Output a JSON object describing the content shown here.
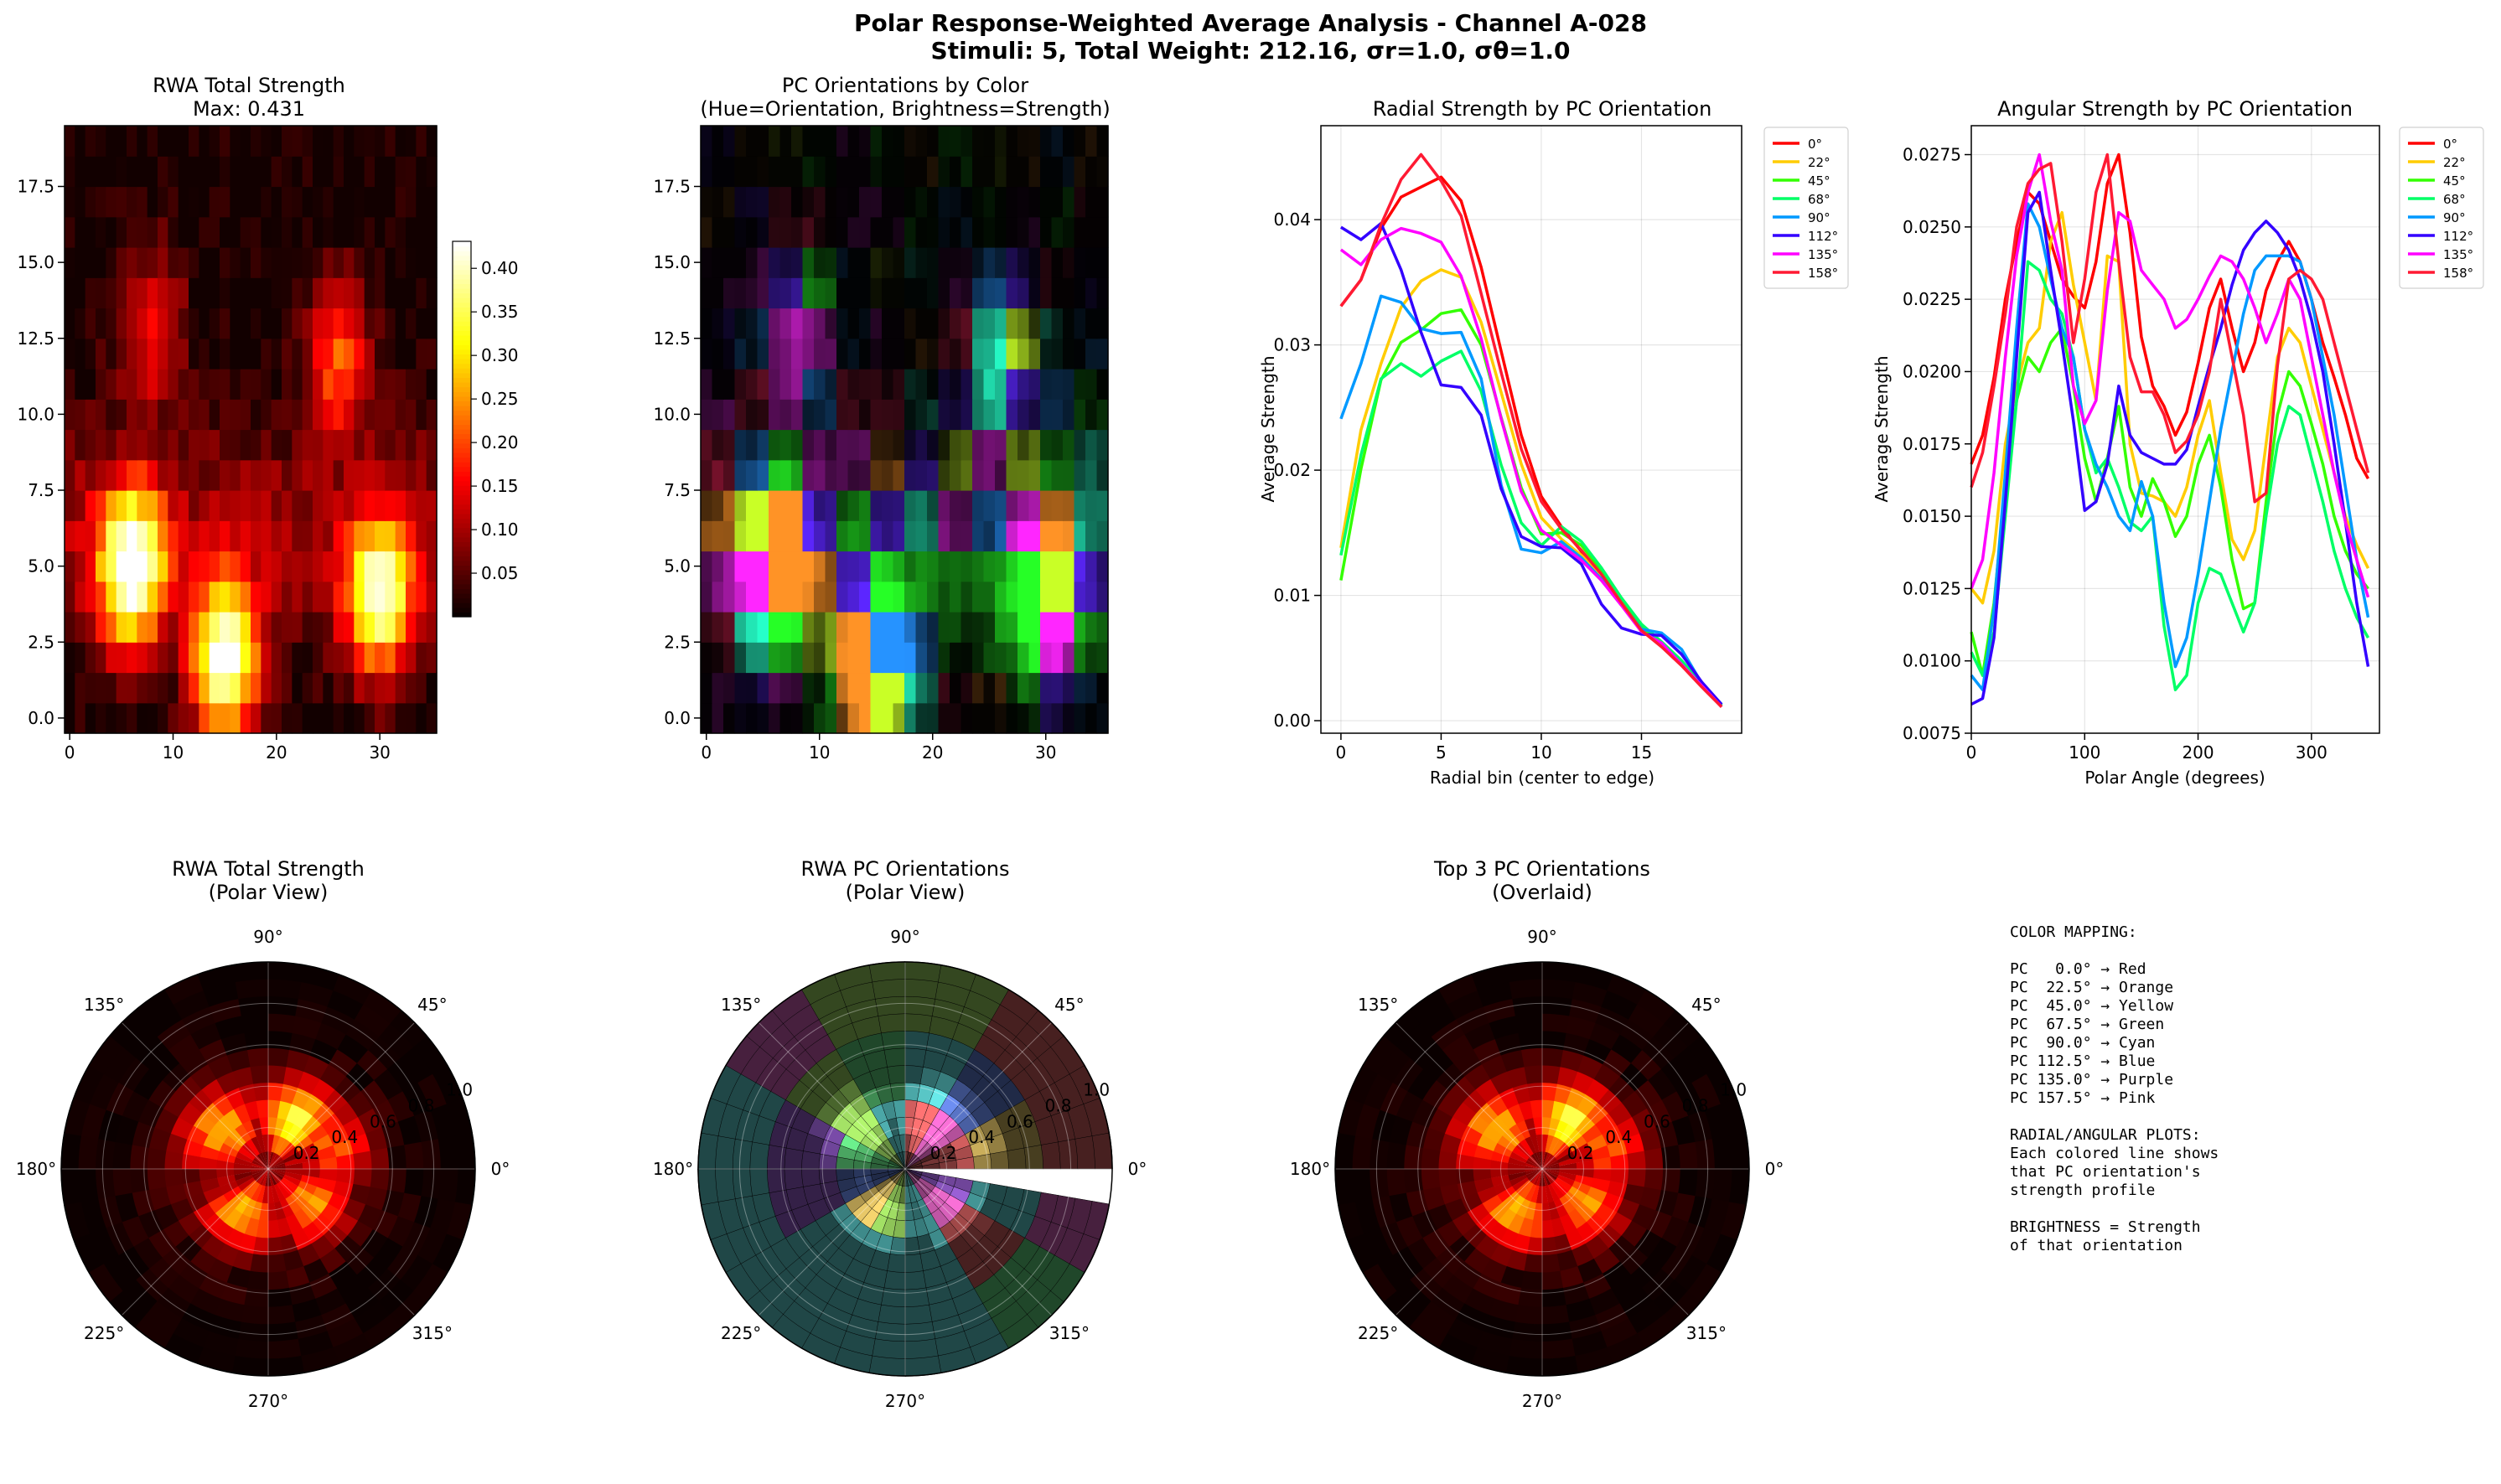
{
  "figure": {
    "title_line1": "Polar Response-Weighted Average Analysis - Channel A-028",
    "title_line2": "Stimuli: 5, Total Weight: 212.16, σr=1.0, σθ=1.0"
  },
  "chart_data": [
    {
      "type": "heatmap",
      "title": "RWA Total Strength",
      "subtitle": "Max: 0.431",
      "colormap": "hot",
      "xlim": [
        -0.5,
        35.5
      ],
      "ylim": [
        -0.5,
        19.5
      ],
      "xticks": [
        "0",
        "10",
        "20",
        "30"
      ],
      "yticks": [
        "0.0",
        "2.5",
        "5.0",
        "7.5",
        "10.0",
        "12.5",
        "15.0",
        "17.5"
      ],
      "colorbar_ticks": [
        "0.05",
        "0.10",
        "0.15",
        "0.20",
        "0.25",
        "0.30",
        "0.35",
        "0.40"
      ],
      "colorbar_range": [
        0.0,
        0.431
      ],
      "grid_shape": [
        20,
        36
      ],
      "hotspots": [
        {
          "x": 6,
          "y": 5,
          "value": 0.42
        },
        {
          "x": 15,
          "y": 2,
          "value": 0.43
        },
        {
          "x": 30,
          "y": 4,
          "value": 0.36
        },
        {
          "x": 26,
          "y": 12,
          "value": 0.2
        },
        {
          "x": 8,
          "y": 13,
          "value": 0.16
        }
      ]
    },
    {
      "type": "heatmap",
      "title": "PC Orientations by Color",
      "subtitle": "(Hue=Orientation, Brightness=Strength)",
      "xlim": [
        -0.5,
        35.5
      ],
      "ylim": [
        -0.5,
        19.5
      ],
      "xticks": [
        "0",
        "10",
        "20",
        "30"
      ],
      "yticks": [
        "0.0",
        "2.5",
        "5.0",
        "7.5",
        "10.0",
        "12.5",
        "15.0",
        "17.5"
      ]
    },
    {
      "type": "line",
      "title": "Radial Strength by PC Orientation",
      "xlabel": "Radial bin (center to edge)",
      "ylabel": "Average Strength",
      "xlim": [
        -1,
        20
      ],
      "ylim": [
        -0.001,
        0.0475
      ],
      "xticks": [
        0,
        5,
        10,
        15
      ],
      "yticks": [
        0.0,
        0.01,
        0.02,
        0.03,
        0.04
      ],
      "ytick_labels": [
        "0.00",
        "0.01",
        "0.02",
        "0.03",
        "0.04"
      ],
      "x": [
        0,
        1,
        2,
        3,
        4,
        5,
        6,
        7,
        8,
        9,
        10,
        11,
        12,
        13,
        14,
        15,
        16,
        17,
        18,
        19
      ],
      "legend_position": "outside-right",
      "series": [
        {
          "name": "0°",
          "color": "#ff0000",
          "values": [
            0.0331,
            0.0352,
            0.0393,
            0.0418,
            0.0426,
            0.0434,
            0.0415,
            0.0362,
            0.0295,
            0.0228,
            0.0179,
            0.0155,
            0.0135,
            0.0118,
            0.0095,
            0.0073,
            0.006,
            0.0045,
            0.0028,
            0.0011
          ]
        },
        {
          "name": "22°",
          "color": "#ffcc00",
          "values": [
            0.0138,
            0.0232,
            0.0285,
            0.033,
            0.0351,
            0.036,
            0.0354,
            0.0318,
            0.0262,
            0.0205,
            0.0162,
            0.0145,
            0.0132,
            0.0116,
            0.0093,
            0.0073,
            0.006,
            0.0045,
            0.0028,
            0.0012
          ]
        },
        {
          "name": "45°",
          "color": "#33ff00",
          "values": [
            0.0112,
            0.0201,
            0.0272,
            0.0302,
            0.0312,
            0.0325,
            0.0328,
            0.03,
            0.0242,
            0.0186,
            0.0149,
            0.015,
            0.014,
            0.012,
            0.0096,
            0.0075,
            0.0062,
            0.0047,
            0.0029,
            0.0012
          ]
        },
        {
          "name": "68°",
          "color": "#00ff66",
          "values": [
            0.0132,
            0.0212,
            0.0273,
            0.0285,
            0.0275,
            0.0287,
            0.0295,
            0.0263,
            0.0204,
            0.0158,
            0.014,
            0.0155,
            0.0143,
            0.0122,
            0.0098,
            0.0077,
            0.0063,
            0.0048,
            0.003,
            0.0012
          ]
        },
        {
          "name": "90°",
          "color": "#0099ff",
          "values": [
            0.0241,
            0.0285,
            0.0339,
            0.0334,
            0.0313,
            0.0309,
            0.031,
            0.0273,
            0.0188,
            0.0137,
            0.0134,
            0.0143,
            0.013,
            0.0113,
            0.0093,
            0.0073,
            0.007,
            0.0057,
            0.003,
            0.0013
          ]
        },
        {
          "name": "112°",
          "color": "#3300ff",
          "values": [
            0.0394,
            0.0384,
            0.0397,
            0.036,
            0.031,
            0.0268,
            0.0266,
            0.0244,
            0.0185,
            0.0147,
            0.0139,
            0.0138,
            0.0125,
            0.0093,
            0.0074,
            0.0069,
            0.0068,
            0.0053,
            0.0031,
            0.0013
          ]
        },
        {
          "name": "135°",
          "color": "#ff00ff",
          "values": [
            0.0376,
            0.0364,
            0.0384,
            0.0393,
            0.0389,
            0.0382,
            0.0355,
            0.0305,
            0.0241,
            0.0183,
            0.0152,
            0.014,
            0.0128,
            0.0112,
            0.0092,
            0.0071,
            0.0062,
            0.0045,
            0.0028,
            0.0011
          ]
        },
        {
          "name": "158°",
          "color": "#ff1a33",
          "values": [
            0.0331,
            0.0352,
            0.0396,
            0.0432,
            0.0452,
            0.0431,
            0.0403,
            0.0341,
            0.0278,
            0.0217,
            0.0175,
            0.0153,
            0.0136,
            0.0117,
            0.0094,
            0.0072,
            0.0059,
            0.0044,
            0.0027,
            0.0011
          ]
        }
      ]
    },
    {
      "type": "line",
      "title": "Angular Strength by PC Orientation",
      "xlabel": "Polar Angle (degrees)",
      "ylabel": "Average Strength",
      "xlim": [
        0,
        360
      ],
      "ylim": [
        0.0075,
        0.0285
      ],
      "xticks": [
        0,
        100,
        200,
        300
      ],
      "yticks": [
        0.0075,
        0.01,
        0.0125,
        0.015,
        0.0175,
        0.02,
        0.0225,
        0.025,
        0.0275
      ],
      "ytick_labels": [
        "0.0075",
        "0.0100",
        "0.0125",
        "0.0150",
        "0.0175",
        "0.0200",
        "0.0225",
        "0.0250",
        "0.0275"
      ],
      "x": [
        0,
        10,
        20,
        30,
        40,
        50,
        60,
        70,
        80,
        90,
        100,
        110,
        120,
        130,
        140,
        150,
        160,
        170,
        180,
        190,
        200,
        210,
        220,
        230,
        240,
        250,
        260,
        270,
        280,
        290,
        300,
        310,
        320,
        330,
        340,
        350
      ],
      "legend_position": "outside-right",
      "series": [
        {
          "name": "0°",
          "color": "#ff0000",
          "values": [
            0.0168,
            0.0178,
            0.0198,
            0.0225,
            0.0245,
            0.0262,
            0.0258,
            0.0245,
            0.0232,
            0.0226,
            0.0222,
            0.0238,
            0.0265,
            0.0275,
            0.0248,
            0.0212,
            0.0195,
            0.0188,
            0.0178,
            0.0186,
            0.0203,
            0.0222,
            0.0232,
            0.0215,
            0.02,
            0.021,
            0.0228,
            0.0238,
            0.0245,
            0.0238,
            0.0225,
            0.021,
            0.0198,
            0.0185,
            0.017,
            0.0163
          ]
        },
        {
          "name": "22°",
          "color": "#ffcc00",
          "values": [
            0.0125,
            0.012,
            0.0138,
            0.0175,
            0.0195,
            0.021,
            0.0215,
            0.0245,
            0.0255,
            0.023,
            0.021,
            0.019,
            0.024,
            0.0238,
            0.0175,
            0.0158,
            0.0157,
            0.0155,
            0.015,
            0.016,
            0.0178,
            0.019,
            0.0165,
            0.0142,
            0.0135,
            0.0145,
            0.0175,
            0.0205,
            0.0215,
            0.021,
            0.0195,
            0.018,
            0.0165,
            0.015,
            0.014,
            0.0132
          ]
        },
        {
          "name": "45°",
          "color": "#33ff00",
          "values": [
            0.011,
            0.0095,
            0.012,
            0.016,
            0.019,
            0.0205,
            0.02,
            0.021,
            0.0215,
            0.0195,
            0.017,
            0.0155,
            0.017,
            0.0188,
            0.016,
            0.015,
            0.0163,
            0.0155,
            0.0143,
            0.015,
            0.0168,
            0.0178,
            0.016,
            0.0135,
            0.0118,
            0.012,
            0.0155,
            0.0185,
            0.02,
            0.0195,
            0.0182,
            0.0168,
            0.015,
            0.0138,
            0.013,
            0.0125
          ]
        },
        {
          "name": "68°",
          "color": "#00ff66",
          "values": [
            0.0103,
            0.0095,
            0.011,
            0.015,
            0.019,
            0.0238,
            0.0235,
            0.0225,
            0.022,
            0.0205,
            0.018,
            0.0165,
            0.017,
            0.016,
            0.0148,
            0.0145,
            0.015,
            0.0112,
            0.009,
            0.0095,
            0.012,
            0.0132,
            0.013,
            0.012,
            0.011,
            0.012,
            0.015,
            0.0175,
            0.0188,
            0.0185,
            0.017,
            0.0155,
            0.0138,
            0.0125,
            0.0115,
            0.0108
          ]
        },
        {
          "name": "90°",
          "color": "#0099ff",
          "values": [
            0.0095,
            0.009,
            0.0118,
            0.0165,
            0.0215,
            0.0258,
            0.025,
            0.0232,
            0.0215,
            0.0205,
            0.018,
            0.0168,
            0.016,
            0.015,
            0.0145,
            0.0162,
            0.015,
            0.012,
            0.0098,
            0.0108,
            0.013,
            0.0155,
            0.018,
            0.02,
            0.022,
            0.0235,
            0.024,
            0.024,
            0.024,
            0.0238,
            0.0225,
            0.0205,
            0.0185,
            0.016,
            0.0135,
            0.0115
          ]
        },
        {
          "name": "112°",
          "color": "#3300ff",
          "values": [
            0.0085,
            0.0087,
            0.0108,
            0.0155,
            0.0205,
            0.0255,
            0.0262,
            0.0235,
            0.021,
            0.0183,
            0.0152,
            0.0155,
            0.0168,
            0.0195,
            0.0178,
            0.0172,
            0.017,
            0.0168,
            0.0168,
            0.0173,
            0.0188,
            0.0202,
            0.0215,
            0.023,
            0.0242,
            0.0248,
            0.0252,
            0.0248,
            0.0242,
            0.0232,
            0.0218,
            0.02,
            0.0175,
            0.0148,
            0.012,
            0.0098
          ]
        },
        {
          "name": "135°",
          "color": "#ff00ff",
          "values": [
            0.0125,
            0.0135,
            0.0165,
            0.0205,
            0.024,
            0.0262,
            0.0275,
            0.0252,
            0.0235,
            0.0195,
            0.0182,
            0.019,
            0.0228,
            0.0255,
            0.0252,
            0.0235,
            0.023,
            0.0225,
            0.0215,
            0.0218,
            0.0225,
            0.0233,
            0.024,
            0.0238,
            0.0232,
            0.0222,
            0.021,
            0.022,
            0.0232,
            0.0225,
            0.0205,
            0.0185,
            0.0165,
            0.0148,
            0.0135,
            0.0122
          ]
        },
        {
          "name": "158°",
          "color": "#ff1a33",
          "values": [
            0.016,
            0.0172,
            0.0195,
            0.022,
            0.025,
            0.0265,
            0.027,
            0.0272,
            0.0245,
            0.021,
            0.0232,
            0.0262,
            0.0275,
            0.0238,
            0.0205,
            0.0193,
            0.0193,
            0.0185,
            0.0172,
            0.0176,
            0.0185,
            0.02,
            0.0225,
            0.0205,
            0.0185,
            0.0155,
            0.0158,
            0.0202,
            0.0232,
            0.0235,
            0.0232,
            0.0225,
            0.021,
            0.0195,
            0.018,
            0.0165
          ]
        }
      ]
    },
    {
      "type": "heatmap",
      "title": "RWA Total Strength",
      "subtitle": "(Polar View)",
      "projection": "polar",
      "angle_labels": [
        "0°",
        "45°",
        "90°",
        "135°",
        "180°",
        "225°",
        "270°",
        "315°"
      ],
      "radial_ticks": [
        "0.2",
        "0.4",
        "0.6",
        "0.8",
        "1.0"
      ],
      "colormap": "hot"
    },
    {
      "type": "heatmap",
      "title": "RWA PC Orientations",
      "subtitle": "(Polar View)",
      "projection": "polar",
      "angle_labels": [
        "0°",
        "45°",
        "90°",
        "135°",
        "180°",
        "225°",
        "270°",
        "315°"
      ],
      "radial_ticks": [
        "0.2",
        "0.4",
        "0.6",
        "0.8",
        "1.0"
      ]
    },
    {
      "type": "heatmap",
      "title": "Top 3 PC Orientations",
      "subtitle": "(Overlaid)",
      "projection": "polar",
      "angle_labels": [
        "0°",
        "45°",
        "90°",
        "135°",
        "180°",
        "225°",
        "270°",
        "315°"
      ],
      "radial_ticks": [
        "0.2",
        "0.4",
        "0.6",
        "0.8",
        "1.0"
      ],
      "colormap": "hot"
    }
  ],
  "info_text": [
    "COLOR MAPPING:",
    "",
    "PC   0.0° → Red",
    "PC  22.5° → Orange",
    "PC  45.0° → Yellow",
    "PC  67.5° → Green",
    "PC  90.0° → Cyan",
    "PC 112.5° → Blue",
    "PC 135.0° → Purple",
    "PC 157.5° → Pink",
    "",
    "RADIAL/ANGULAR PLOTS:",
    "Each colored line shows",
    "that PC orientation's",
    "strength profile",
    "",
    "BRIGHTNESS = Strength",
    "of that orientation"
  ]
}
